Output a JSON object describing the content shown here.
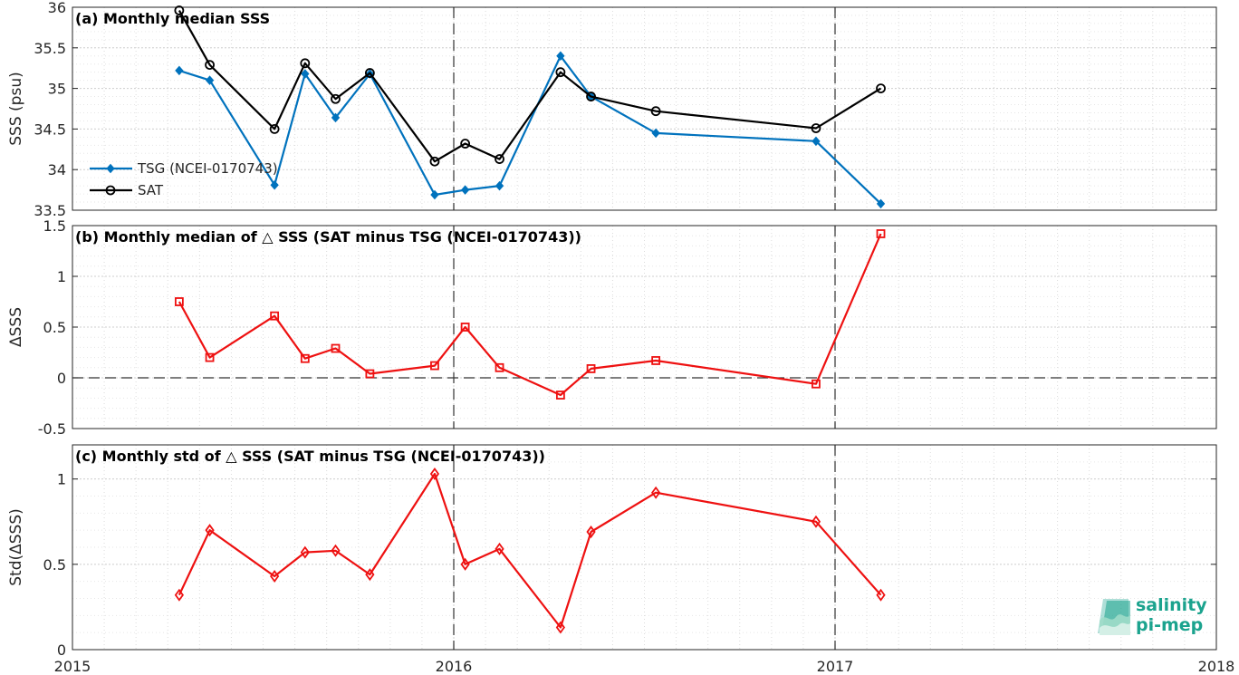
{
  "x_axis": {
    "ticks": [
      "2015",
      "2016",
      "2017",
      "2018"
    ]
  },
  "chart_data": [
    {
      "type": "line",
      "title": "(a) Monthly median SSS",
      "ylabel": "SSS (psu)",
      "xlim": [
        2015.0,
        2018.0
      ],
      "ylim": [
        33.5,
        36
      ],
      "yticks": [
        "33.5",
        "34",
        "34.5",
        "35",
        "35.5",
        "36"
      ],
      "legend_position": "left",
      "series": [
        {
          "name": "TSG (NCEI-0170743)",
          "color": "#0072bd",
          "marker": "diamond-filled",
          "x": [
            2015.28,
            2015.36,
            2015.53,
            2015.61,
            2015.69,
            2015.78,
            2015.95,
            2016.03,
            2016.12,
            2016.28,
            2016.36,
            2016.53,
            2016.95,
            2017.12
          ],
          "y": [
            35.22,
            35.1,
            33.81,
            35.18,
            34.64,
            35.18,
            33.69,
            33.75,
            33.8,
            35.4,
            34.9,
            34.45,
            34.35,
            33.58
          ]
        },
        {
          "name": "SAT",
          "color": "#000000",
          "marker": "circle-open",
          "x": [
            2015.28,
            2015.36,
            2015.53,
            2015.61,
            2015.69,
            2015.78,
            2015.95,
            2016.03,
            2016.12,
            2016.28,
            2016.36,
            2016.53,
            2016.95,
            2017.12
          ],
          "y": [
            35.96,
            35.29,
            34.5,
            35.31,
            34.87,
            35.19,
            34.1,
            34.32,
            34.13,
            35.2,
            34.9,
            34.72,
            34.51,
            35.0
          ]
        }
      ]
    },
    {
      "type": "line",
      "title": "(b) Monthly median of △ SSS (SAT minus TSG (NCEI-0170743))",
      "ylabel": "ΔSSS",
      "xlim": [
        2015.0,
        2018.0
      ],
      "ylim": [
        -0.5,
        1.5
      ],
      "yticks": [
        "-0.5",
        "0",
        "0.5",
        "1",
        "1.5"
      ],
      "series": [
        {
          "color": "#ee1111",
          "marker": "square-open",
          "x": [
            2015.28,
            2015.36,
            2015.53,
            2015.61,
            2015.69,
            2015.78,
            2015.95,
            2016.03,
            2016.12,
            2016.28,
            2016.36,
            2016.53,
            2016.95,
            2017.12
          ],
          "y": [
            0.75,
            0.2,
            0.61,
            0.19,
            0.29,
            0.04,
            0.12,
            0.5,
            0.1,
            -0.17,
            0.09,
            0.17,
            -0.06,
            1.42
          ]
        }
      ]
    },
    {
      "type": "line",
      "title": "(c) Monthly std of △ SSS (SAT minus TSG (NCEI-0170743))",
      "ylabel": "Std(ΔSSS)",
      "xlim": [
        2015.0,
        2018.0
      ],
      "ylim": [
        0,
        1.2
      ],
      "yticks": [
        "0",
        "0.5",
        "1"
      ],
      "series": [
        {
          "color": "#ee1111",
          "marker": "diamond-open",
          "x": [
            2015.28,
            2015.36,
            2015.53,
            2015.61,
            2015.69,
            2015.78,
            2015.95,
            2016.03,
            2016.12,
            2016.28,
            2016.36,
            2016.53,
            2016.95,
            2017.12
          ],
          "y": [
            0.32,
            0.7,
            0.43,
            0.57,
            0.58,
            0.44,
            1.03,
            0.5,
            0.59,
            0.13,
            0.69,
            0.92,
            0.75,
            0.32
          ]
        }
      ]
    }
  ],
  "logo": {
    "line1": "salinity",
    "line2": "pi-mep",
    "color": "#1ba38e"
  }
}
